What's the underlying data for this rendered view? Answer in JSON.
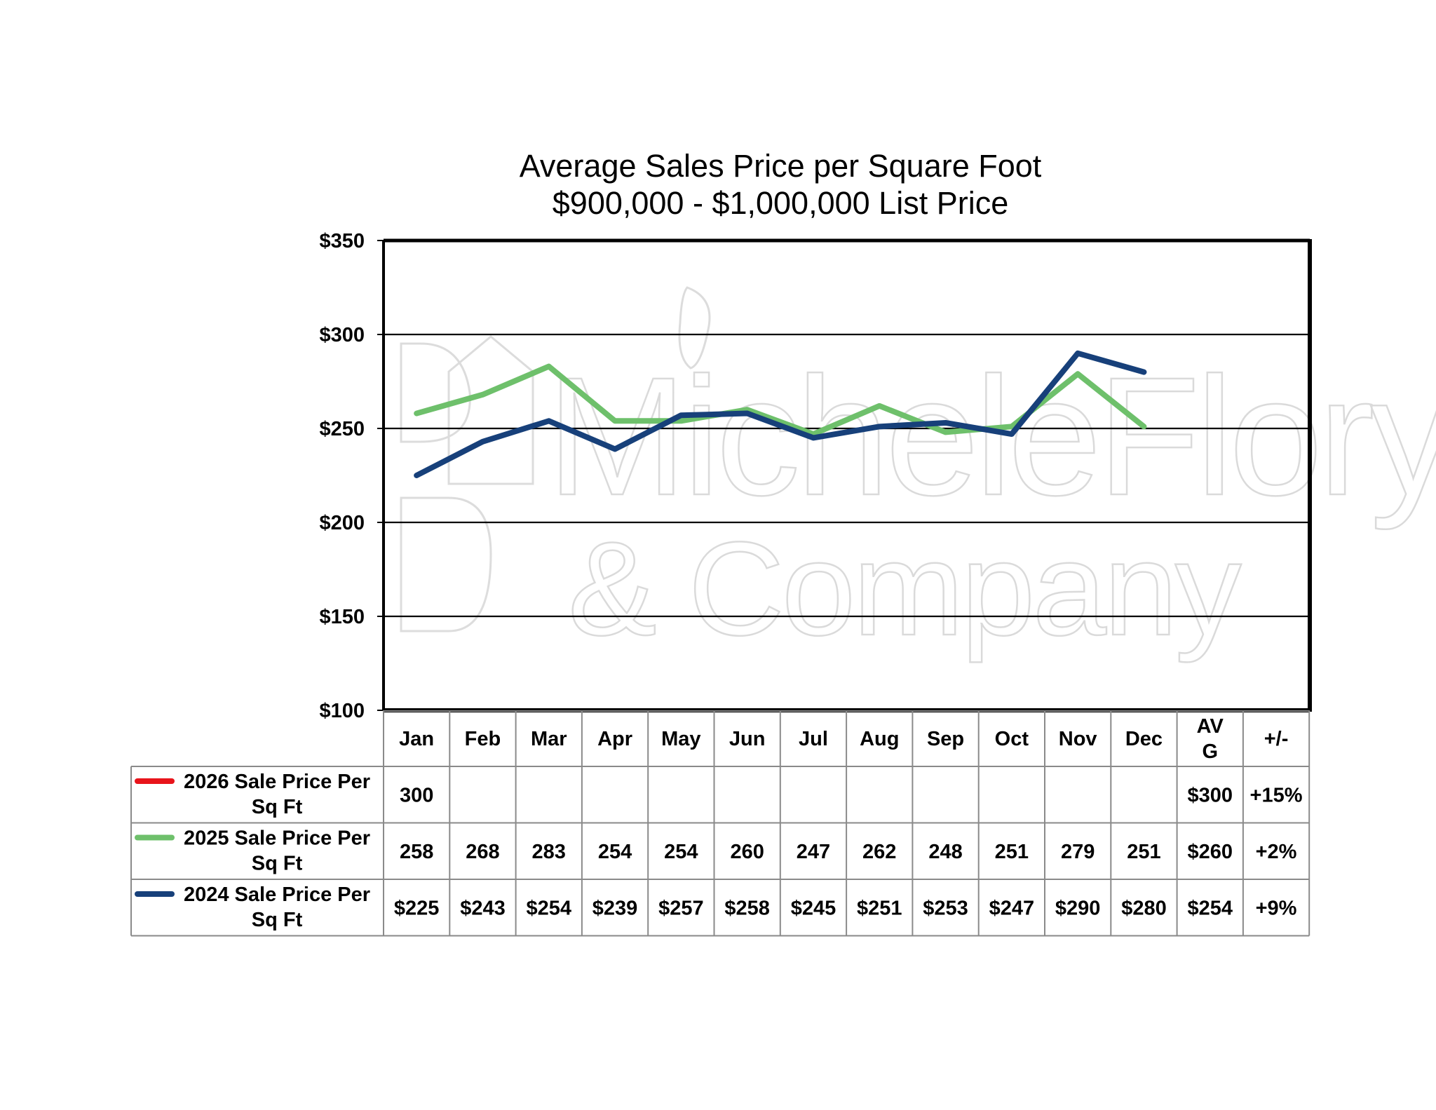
{
  "chart_data": {
    "type": "line",
    "title": "Average Sales Price per Square Foot",
    "subtitle": "$900,000 - $1,000,000 List Price",
    "categories": [
      "Jan",
      "Feb",
      "Mar",
      "Apr",
      "May",
      "Jun",
      "Jul",
      "Aug",
      "Sep",
      "Oct",
      "Nov",
      "Dec"
    ],
    "ylim": [
      100,
      350
    ],
    "yticks": [
      "$350",
      "$300",
      "$250",
      "$200",
      "$150",
      "$100"
    ],
    "ytick_values": [
      350,
      300,
      250,
      200,
      150,
      100
    ],
    "grid": true,
    "legend_placement": "in data table",
    "table_extra_headers": [
      "AV\nG",
      "+/-"
    ],
    "series": [
      {
        "name": "2026 Sale Price Per Sq Ft",
        "color": "#e8141b",
        "values": [
          300,
          null,
          null,
          null,
          null,
          null,
          null,
          null,
          null,
          null,
          null,
          null
        ],
        "cells": [
          "300",
          "",
          "",
          "",
          "",
          "",
          "",
          "",
          "",
          "",
          "",
          ""
        ],
        "avg": "$300",
        "change": "+15%"
      },
      {
        "name": "2025 Sale Price Per Sq Ft",
        "color": "#6ec06b",
        "values": [
          258,
          268,
          283,
          254,
          254,
          260,
          247,
          262,
          248,
          251,
          279,
          251
        ],
        "cells": [
          "258",
          "268",
          "283",
          "254",
          "254",
          "260",
          "247",
          "262",
          "248",
          "251",
          "279",
          "251"
        ],
        "avg": "$260",
        "change": "+2%"
      },
      {
        "name": "2024 Sale Price Per Sq Ft",
        "color": "#17407a",
        "values": [
          225,
          243,
          254,
          239,
          257,
          258,
          245,
          251,
          253,
          247,
          290,
          280
        ],
        "cells": [
          "$225",
          "$243",
          "$254",
          "$239",
          "$257",
          "$258",
          "$245",
          "$251",
          "$253",
          "$247",
          "$290",
          "$280"
        ],
        "avg": "$254",
        "change": "+9%"
      }
    ]
  },
  "watermark": {
    "line1": "MicheleFlory",
    "line2": "& Company"
  }
}
